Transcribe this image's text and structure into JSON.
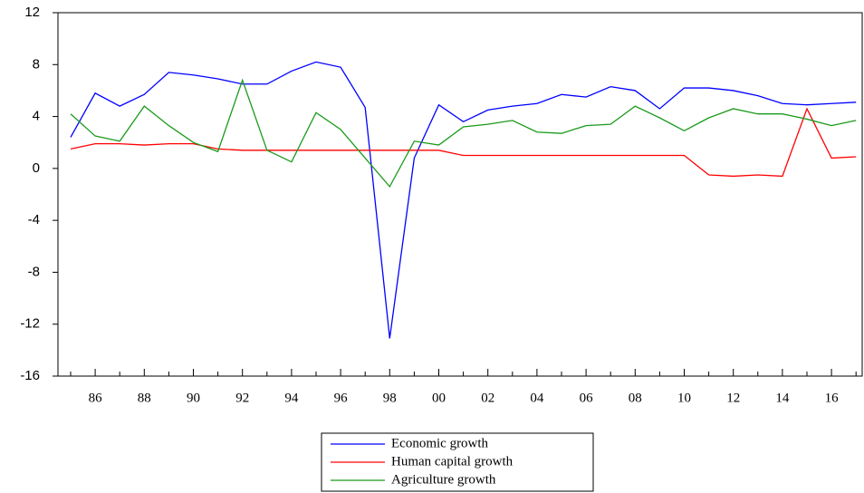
{
  "chart_data": {
    "type": "line",
    "categories": [
      null,
      "86",
      null,
      "88",
      null,
      "90",
      null,
      "92",
      null,
      "94",
      null,
      "96",
      null,
      "98",
      null,
      "00",
      null,
      "02",
      null,
      "04",
      null,
      "06",
      null,
      "08",
      null,
      "10",
      null,
      "12",
      null,
      "14",
      null,
      "16",
      null
    ],
    "ylim": [
      -16,
      12
    ],
    "yticks": [
      -16,
      -12,
      -8,
      -4,
      0,
      4,
      8,
      12
    ],
    "grid": false,
    "series": [
      {
        "name": "Economic growth",
        "color": "#0000ff",
        "values": [
          2.4,
          5.8,
          4.8,
          5.7,
          7.4,
          7.2,
          6.9,
          6.5,
          6.5,
          7.5,
          8.2,
          7.8,
          4.7,
          -13.1,
          0.8,
          4.9,
          3.6,
          4.5,
          4.8,
          5.0,
          5.7,
          5.5,
          6.3,
          6.0,
          4.6,
          6.2,
          6.2,
          6.0,
          5.6,
          5.0,
          4.9,
          5.0,
          5.1
        ]
      },
      {
        "name": "Human capital growth",
        "color": "#ff0000",
        "values": [
          1.5,
          1.9,
          1.9,
          1.8,
          1.9,
          1.9,
          1.5,
          1.4,
          1.4,
          1.4,
          1.4,
          1.4,
          1.4,
          1.4,
          1.4,
          1.4,
          1.0,
          1.0,
          1.0,
          1.0,
          1.0,
          1.0,
          1.0,
          1.0,
          1.0,
          1.0,
          -0.5,
          -0.6,
          -0.5,
          -0.6,
          4.6,
          0.8,
          0.9
        ]
      },
      {
        "name": "Agriculture growth",
        "color": "#1a9a1a",
        "values": [
          4.2,
          2.5,
          2.1,
          4.8,
          3.3,
          2.0,
          1.3,
          6.8,
          1.4,
          0.5,
          4.3,
          3.0,
          0.8,
          -1.4,
          2.1,
          1.8,
          3.2,
          3.4,
          3.7,
          2.8,
          2.7,
          3.3,
          3.4,
          4.8,
          3.9,
          2.9,
          3.9,
          4.6,
          4.2,
          4.2,
          3.8,
          3.3,
          3.7
        ]
      }
    ]
  }
}
